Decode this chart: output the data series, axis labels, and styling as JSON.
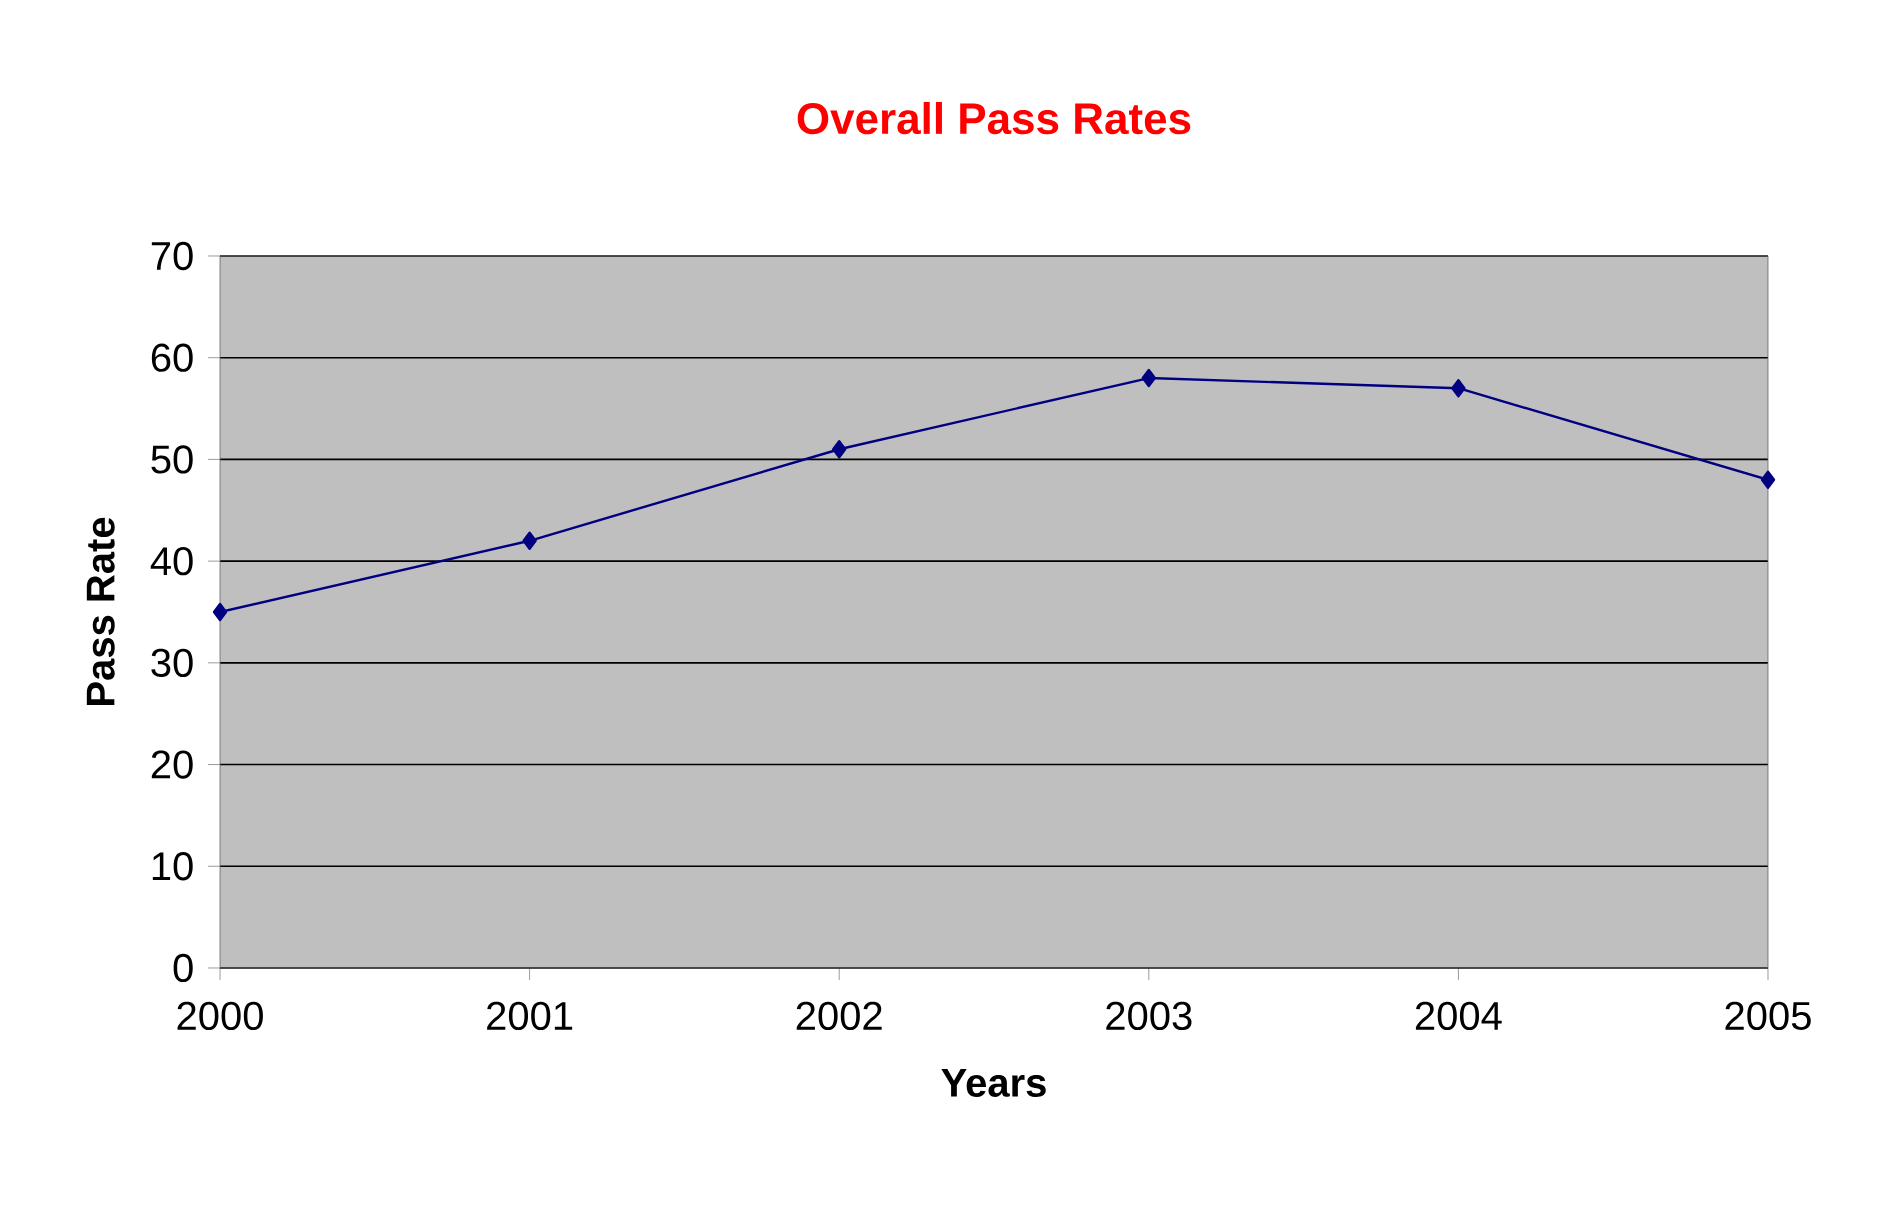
{
  "chart_data": {
    "type": "line",
    "title": "Overall Pass Rates",
    "xlabel": "Years",
    "ylabel": "Pass Rate",
    "x": [
      2000,
      2001,
      2002,
      2003,
      2004,
      2005
    ],
    "series": [
      {
        "color": "#000080",
        "values": [
          35,
          42,
          51,
          58,
          57,
          48
        ]
      }
    ],
    "xlim": [
      2000,
      2005
    ],
    "xticks": [
      2000,
      2001,
      2002,
      2003,
      2004,
      2005
    ],
    "ylim": [
      0,
      70
    ],
    "yticks": [
      0,
      10,
      20,
      30,
      40,
      50,
      60,
      70
    ],
    "grid": "y",
    "marker": "diamond",
    "line_style": "solid"
  }
}
